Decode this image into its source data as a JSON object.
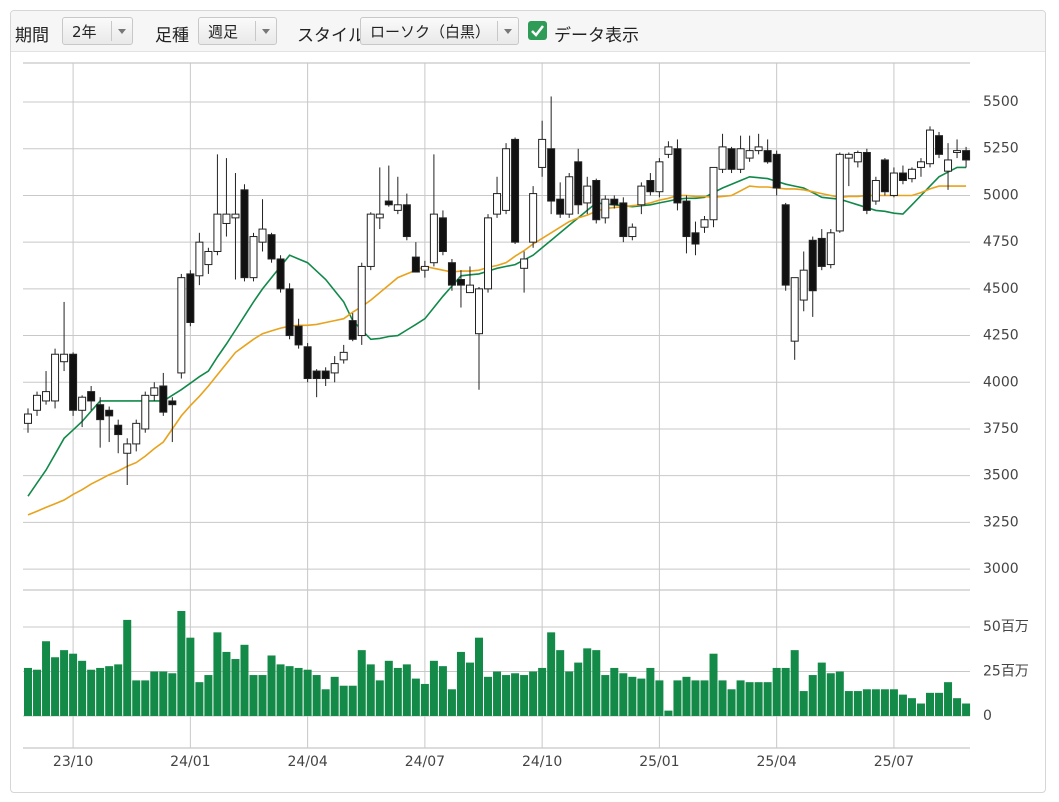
{
  "toolbar": {
    "period_label": "期間",
    "period_value": "2年",
    "interval_label": "足種",
    "interval_value": "週足",
    "style_label": "スタイル",
    "style_value": "ローソク（白黒）",
    "show_data_label": "データ表示",
    "show_data_checked": true
  },
  "chart_data": {
    "type": "candlestick",
    "categories": [
      null,
      null,
      null,
      null,
      null,
      "23/10",
      null,
      null,
      null,
      null,
      null,
      null,
      null,
      null,
      null,
      null,
      null,
      null,
      "24/01",
      null,
      null,
      null,
      null,
      null,
      null,
      null,
      null,
      null,
      null,
      null,
      null,
      "24/04",
      null,
      null,
      null,
      null,
      null,
      null,
      null,
      null,
      null,
      null,
      null,
      null,
      "24/07",
      null,
      null,
      null,
      null,
      null,
      null,
      null,
      null,
      null,
      null,
      null,
      null,
      "24/10",
      null,
      null,
      null,
      null,
      null,
      null,
      null,
      null,
      null,
      null,
      null,
      null,
      "25/01",
      null,
      null,
      null,
      null,
      null,
      null,
      null,
      null,
      null,
      null,
      null,
      null,
      "25/04",
      null,
      null,
      null,
      null,
      null,
      null,
      null,
      null,
      null,
      null,
      null,
      null,
      "25/07",
      null,
      null,
      null,
      null,
      null,
      null,
      null,
      null
    ],
    "open": [
      3780,
      3850,
      3900,
      3900,
      4110,
      4150,
      3850,
      3950,
      3880,
      3850,
      3770,
      3620,
      3670,
      3750,
      3930,
      3980,
      3900,
      4050,
      4580,
      4570,
      4630,
      4700,
      4850,
      4880,
      5030,
      4560,
      4750,
      4790,
      4660,
      4500,
      4300,
      4190,
      4060,
      4060,
      4050,
      4120,
      4330,
      4250,
      4620,
      4880,
      4970,
      4920,
      4950,
      4670,
      4600,
      4640,
      4880,
      4640,
      4550,
      4480,
      4260,
      4500,
      4900,
      4920,
      5300,
      4610,
      4750,
      5150,
      5250,
      4980,
      4900,
      5180,
      4960,
      5080,
      4880,
      4980,
      4960,
      4780,
      4950,
      5080,
      5020,
      5220,
      5250,
      4970,
      4800,
      4830,
      4870,
      5140,
      5250,
      5140,
      5200,
      5240,
      5240,
      5220,
      4950,
      4220,
      4440,
      4760,
      4770,
      4630,
      4810,
      5200,
      5180,
      5230,
      4970,
      5190,
      5000,
      5120,
      5090,
      5150,
      5170,
      5320,
      5130,
      5230,
      5240
    ],
    "high": [
      3860,
      3950,
      4060,
      4180,
      4430,
      4160,
      3930,
      3980,
      3920,
      3870,
      3800,
      3700,
      3800,
      3950,
      4000,
      4050,
      3920,
      4580,
      4600,
      4800,
      4720,
      5220,
      5200,
      5120,
      5060,
      4800,
      4980,
      4800,
      4680,
      4530,
      4340,
      4210,
      4070,
      4080,
      4140,
      4200,
      4370,
      4640,
      4910,
      5150,
      5160,
      5100,
      5010,
      4750,
      4650,
      5220,
      4920,
      4660,
      4600,
      4620,
      4510,
      4900,
      5100,
      5280,
      5310,
      4700,
      5050,
      5400,
      5530,
      5070,
      5120,
      5250,
      5100,
      5090,
      5000,
      5000,
      4990,
      4850,
      5070,
      5120,
      5200,
      5290,
      5300,
      5000,
      4860,
      4890,
      5150,
      5330,
      5260,
      5320,
      5320,
      5330,
      5300,
      5240,
      4960,
      4560,
      4700,
      4780,
      4820,
      4820,
      5230,
      5230,
      5240,
      5250,
      5100,
      5200,
      5150,
      5160,
      5150,
      5200,
      5370,
      5340,
      5280,
      5300,
      5260
    ],
    "low": [
      3730,
      3820,
      3880,
      3860,
      4060,
      3820,
      3760,
      3850,
      3650,
      3680,
      3620,
      3450,
      3630,
      3730,
      3900,
      3820,
      3680,
      4020,
      4300,
      4520,
      4580,
      4680,
      4780,
      4550,
      4540,
      4540,
      4700,
      4640,
      4480,
      4230,
      4180,
      4000,
      3920,
      3980,
      4000,
      4100,
      4220,
      4200,
      4600,
      4820,
      4940,
      4900,
      4760,
      4590,
      4560,
      4620,
      4680,
      4490,
      4400,
      4480,
      3960,
      4480,
      4880,
      4900,
      4740,
      4480,
      4720,
      5100,
      4900,
      4880,
      4880,
      4900,
      4900,
      4850,
      4850,
      4930,
      4750,
      4760,
      4900,
      5000,
      4990,
      5200,
      4920,
      4690,
      4680,
      4800,
      4830,
      5120,
      5120,
      5120,
      5180,
      5220,
      5170,
      5000,
      4490,
      4120,
      4380,
      4350,
      4600,
      4610,
      4800,
      5050,
      5150,
      4900,
      4950,
      5000,
      4990,
      5060,
      5070,
      5100,
      5150,
      5200,
      5030,
      5200,
      5150
    ],
    "close": [
      3830,
      3930,
      3950,
      4150,
      4150,
      3850,
      3920,
      3900,
      3800,
      3820,
      3720,
      3670,
      3780,
      3930,
      3970,
      3840,
      3880,
      4560,
      4320,
      4750,
      4700,
      4900,
      4900,
      4900,
      4560,
      4780,
      4820,
      4660,
      4500,
      4250,
      4200,
      4020,
      4020,
      4020,
      4100,
      4160,
      4230,
      4620,
      4900,
      4900,
      4950,
      4950,
      4780,
      4590,
      4620,
      4900,
      4700,
      4520,
      4520,
      4520,
      4500,
      4880,
      5010,
      5250,
      4750,
      4660,
      5010,
      5300,
      4970,
      4900,
      5100,
      4950,
      5050,
      4870,
      4980,
      4950,
      4780,
      4830,
      5050,
      5020,
      5180,
      5260,
      4960,
      4780,
      4740,
      4870,
      5150,
      5260,
      5140,
      5250,
      5240,
      5260,
      5180,
      5040,
      4520,
      4560,
      4600,
      4490,
      4620,
      4800,
      5220,
      5220,
      5230,
      4920,
      5080,
      5020,
      5120,
      5080,
      5140,
      5180,
      5350,
      5220,
      5190,
      5240,
      5190
    ],
    "up_color": "#ffffff",
    "down_color": "#111111",
    "ylim": [
      2888,
      5709
    ],
    "yticks": [
      3000,
      3250,
      3500,
      3750,
      4000,
      4250,
      4500,
      4750,
      5000,
      5250,
      5500
    ],
    "grid": true,
    "lines": [
      {
        "color": "#11894a",
        "values": [
          3390,
          3460,
          3530,
          3615,
          3700,
          3745,
          3790,
          3845,
          3900,
          3900,
          3900,
          3900,
          3900,
          3900,
          3900,
          3900,
          3930,
          3960,
          3995,
          4030,
          4060,
          4135,
          4205,
          4280,
          4355,
          4430,
          4500,
          4560,
          4620,
          4680,
          4660,
          4640,
          4595,
          4550,
          4490,
          4430,
          4330,
          4280,
          4230,
          4235,
          4245,
          4250,
          4280,
          4310,
          4340,
          4400,
          4460,
          4515,
          4570,
          4575,
          4580,
          4595,
          4610,
          4620,
          4630,
          4655,
          4680,
          4720,
          4760,
          4800,
          4840,
          4880,
          4920,
          4960,
          4955,
          4950,
          4945,
          4940,
          4945,
          4950,
          4960,
          4970,
          4980,
          4985,
          4985,
          4990,
          5015,
          5040,
          5060,
          5080,
          5100,
          5095,
          5090,
          5075,
          5060,
          5050,
          5040,
          5015,
          4990,
          4985,
          4980,
          4965,
          4950,
          4935,
          4920,
          4915,
          4905,
          4900,
          4950,
          5000,
          5050,
          5100,
          5125,
          5150,
          5150
        ]
      },
      {
        "color": "#e8a21c",
        "values": [
          3290,
          3310,
          3330,
          3350,
          3370,
          3400,
          3425,
          3455,
          3480,
          3505,
          3525,
          3550,
          3570,
          3605,
          3645,
          3680,
          3750,
          3820,
          3875,
          3925,
          3980,
          4040,
          4100,
          4160,
          4195,
          4230,
          4260,
          4275,
          4290,
          4300,
          4305,
          4305,
          4310,
          4320,
          4330,
          4340,
          4375,
          4405,
          4440,
          4480,
          4520,
          4560,
          4580,
          4600,
          4620,
          4610,
          4600,
          4590,
          4595,
          4595,
          4600,
          4615,
          4625,
          4640,
          4675,
          4705,
          4740,
          4770,
          4800,
          4830,
          4860,
          4880,
          4895,
          4915,
          4930,
          4935,
          4940,
          4945,
          4950,
          4960,
          4975,
          4985,
          5000,
          5000,
          4995,
          4995,
          4990,
          4995,
          5000,
          5025,
          5050,
          5045,
          5045,
          5040,
          5035,
          5035,
          5030,
          5020,
          5010,
          5000,
          4990,
          4995,
          4995,
          5000,
          5000,
          5000,
          5000,
          5000,
          5000,
          5015,
          5035,
          5050,
          5050,
          5050,
          5050
        ]
      }
    ],
    "volume": {
      "type": "bar",
      "color": "#148a48",
      "values": [
        27,
        26,
        42,
        33,
        37,
        35,
        31,
        26,
        27,
        28,
        29,
        54,
        20,
        20,
        25,
        25,
        24,
        59,
        44,
        19,
        23,
        47,
        36,
        32,
        40,
        23,
        23,
        34,
        29,
        28,
        27,
        26,
        23,
        15,
        22,
        17,
        17,
        37,
        29,
        20,
        31,
        27,
        29,
        21,
        18,
        31,
        28,
        15,
        36,
        30,
        44,
        22,
        25,
        23,
        24,
        23,
        25,
        27,
        47,
        37,
        25,
        30,
        38,
        37,
        23,
        27,
        24,
        22,
        21,
        27,
        20,
        3,
        20,
        22,
        20,
        20,
        35,
        20,
        15,
        20,
        19,
        19,
        19,
        27,
        27,
        37,
        14,
        23,
        30,
        24,
        25,
        14,
        14,
        15,
        15,
        15,
        15,
        12,
        10,
        7,
        13,
        13,
        19,
        10,
        7
      ],
      "ylim": [
        -18,
        70.8
      ],
      "yticks": [
        0,
        {
          "value": 25,
          "label": "25百万"
        },
        {
          "value": 50,
          "label": "50百万"
        }
      ]
    }
  }
}
